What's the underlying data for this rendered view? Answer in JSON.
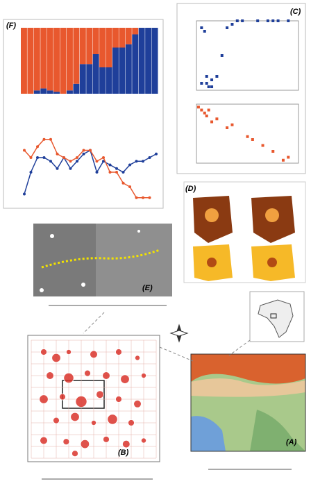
{
  "panels": {
    "A": {
      "label": "(A)"
    },
    "B": {
      "label": "(B)",
      "color": "#d9342b",
      "points": [
        [
          1,
          1,
          0.5
        ],
        [
          2,
          1.5,
          0.7
        ],
        [
          3,
          1,
          0.4
        ],
        [
          5,
          1.2,
          0.6
        ],
        [
          7,
          1,
          0.5
        ],
        [
          8.5,
          1.5,
          0.4
        ],
        [
          1.5,
          3,
          0.6
        ],
        [
          3,
          3.2,
          0.8
        ],
        [
          4.5,
          2.8,
          0.5
        ],
        [
          6,
          3,
          0.6
        ],
        [
          7.5,
          3.3,
          0.7
        ],
        [
          9,
          3,
          0.4
        ],
        [
          1,
          5,
          0.7
        ],
        [
          2.5,
          4.8,
          0.5
        ],
        [
          4,
          5.2,
          0.9
        ],
        [
          5.5,
          4.6,
          0.6
        ],
        [
          7,
          5,
          0.5
        ],
        [
          8.5,
          5.4,
          0.6
        ],
        [
          2,
          6.8,
          0.5
        ],
        [
          3.5,
          6.5,
          0.7
        ],
        [
          5,
          7,
          0.4
        ],
        [
          6.5,
          6.7,
          0.8
        ],
        [
          8,
          7,
          0.5
        ],
        [
          1,
          8.5,
          0.6
        ],
        [
          2.8,
          8.6,
          0.5
        ],
        [
          4.3,
          8.8,
          0.7
        ],
        [
          6,
          8.4,
          0.5
        ],
        [
          7.6,
          8.8,
          0.6
        ],
        [
          9,
          8.5,
          0.4
        ],
        [
          3.5,
          9.6,
          0.5
        ]
      ]
    },
    "C": {
      "label": "(C)",
      "top": {
        "color": "#1f3f9a",
        "x": [
          0.05,
          0.08,
          0.1,
          0.12,
          0.15,
          0.2,
          0.25,
          0.3,
          0.4,
          0.45,
          0.6,
          0.7,
          0.75,
          0.8,
          0.9,
          0.05,
          0.1,
          0.15,
          0.35
        ],
        "y": [
          0.9,
          0.85,
          0.1,
          0.05,
          0.15,
          0.2,
          0.5,
          0.9,
          1,
          1,
          1,
          1,
          1,
          1,
          1,
          0.1,
          0.2,
          0.05,
          0.95
        ]
      },
      "bottom": {
        "color": "#e8582e",
        "x": [
          0.02,
          0.05,
          0.08,
          0.1,
          0.12,
          0.15,
          0.2,
          0.3,
          0.35,
          0.5,
          0.55,
          0.65,
          0.75,
          0.85,
          0.9
        ],
        "y": [
          0.95,
          0.9,
          0.85,
          0.8,
          0.9,
          0.7,
          0.75,
          0.6,
          0.65,
          0.45,
          0.4,
          0.3,
          0.2,
          0.05,
          0.1
        ]
      }
    },
    "D": {
      "label": "(D)"
    },
    "E": {
      "label": "(E)"
    },
    "F": {
      "label": "(F)",
      "bars": {
        "ylim": [
          0,
          100
        ],
        "series": [
          {
            "color": "#1f3f9a",
            "values": [
              0,
              0,
              5,
              8,
              5,
              3,
              0,
              5,
              15,
              45,
              45,
              60,
              40,
              40,
              70,
              70,
              75,
              90,
              100,
              100,
              100
            ]
          },
          {
            "color": "#e8582e",
            "values": [
              100,
              100,
              95,
              92,
              95,
              97,
              100,
              95,
              85,
              55,
              55,
              40,
              60,
              60,
              30,
              30,
              25,
              10,
              0,
              0,
              0
            ]
          }
        ]
      },
      "lines": {
        "ylim": [
          0,
          100
        ],
        "series": [
          {
            "color": "#1f3f9a",
            "values": [
              10,
              40,
              60,
              60,
              55,
              45,
              60,
              45,
              55,
              65,
              70,
              40,
              55,
              50,
              45,
              40,
              50,
              55,
              55,
              60,
              65
            ]
          },
          {
            "color": "#e8582e",
            "values": [
              70,
              60,
              75,
              85,
              85,
              65,
              60,
              55,
              60,
              70,
              70,
              55,
              60,
              40,
              40,
              25,
              20,
              5,
              5,
              5,
              null
            ]
          }
        ]
      }
    }
  }
}
